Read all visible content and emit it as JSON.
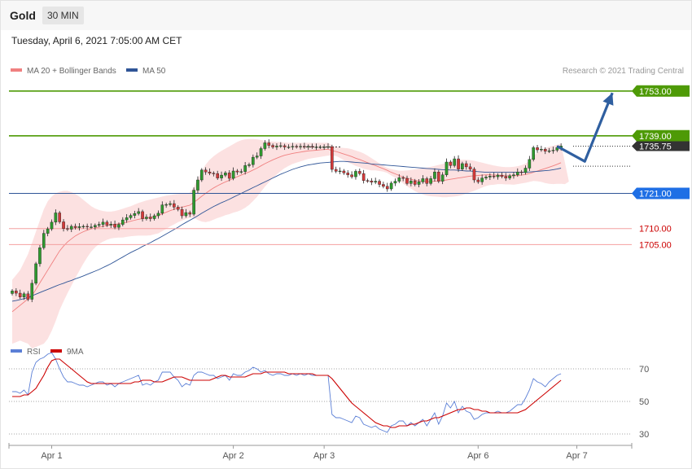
{
  "header": {
    "instrument": "Gold",
    "timeframe": "30 MIN",
    "datetime": "Tuesday, April 6, 2021 7:05:00 AM CET"
  },
  "legend": {
    "bollinger_label": "MA 20 + Bollinger Bands",
    "bollinger_color": "#f08080",
    "ma50_label": "MA 50",
    "ma50_color": "#2f5597",
    "copyright": "Research © 2021 Trading Central"
  },
  "rsi_legend": {
    "rsi_label": "RSI",
    "rsi_color": "#5b7fd6",
    "ma9_label": "9MA",
    "ma9_color": "#cc0000"
  },
  "levels": [
    {
      "value": 1753,
      "label": "1753.00",
      "kind": "resistance",
      "color": "#4e9a06"
    },
    {
      "value": 1739,
      "label": "1739.00",
      "kind": "resistance",
      "color": "#4e9a06"
    },
    {
      "value": 1735.75,
      "label": "1735.75",
      "kind": "last",
      "color": "#333333"
    },
    {
      "value": 1721,
      "label": "1721.00",
      "kind": "pivot",
      "color": "#1f6fe5"
    },
    {
      "value": 1710,
      "label": "1710.00",
      "kind": "support",
      "color": "#cc0000"
    },
    {
      "value": 1705,
      "label": "1705.00",
      "kind": "support",
      "color": "#cc0000"
    }
  ],
  "chart_data": {
    "type": "candlestick",
    "instrument": "Gold",
    "interval": "30 MIN",
    "x_ticks": [
      "Apr 1",
      "Apr 2",
      "Apr 3",
      "Apr 6",
      "Apr 7"
    ],
    "y_range": [
      1672,
      1756
    ],
    "closes": [
      1690.5,
      1689.8,
      1688.6,
      1689.6,
      1687.9,
      1692.9,
      1699,
      1704,
      1708.5,
      1709.9,
      1712,
      1714.9,
      1712.1,
      1710,
      1709.8,
      1710.7,
      1710.3,
      1710.6,
      1710.7,
      1710.5,
      1710.5,
      1711,
      1711.3,
      1712,
      1711.1,
      1711.4,
      1710.4,
      1711.3,
      1712.7,
      1713.4,
      1714.1,
      1714.7,
      1715.3,
      1713.1,
      1713.6,
      1713.1,
      1714,
      1714.8,
      1717.4,
      1717.5,
      1717.8,
      1716.7,
      1716,
      1714,
      1715,
      1714.5,
      1722,
      1725.2,
      1728.3,
      1727.7,
      1727.3,
      1727.2,
      1725.8,
      1726.7,
      1727.4,
      1725.7,
      1728,
      1727.7,
      1727.8,
      1729.7,
      1730,
      1732.3,
      1732.7,
      1735,
      1736.8,
      1736,
      1735.5,
      1735.8,
      1735.9,
      1735.5,
      1735.5,
      1735.7,
      1735.6,
      1735.7,
      1735.5,
      1735.7,
      1735.5,
      1735.5,
      1735.5,
      1735.5,
      1735.6,
      1728.5,
      1727.9,
      1728,
      1727.4,
      1726.8,
      1726.2,
      1727.9,
      1727.2,
      1725,
      1724.9,
      1724.5,
      1724.8,
      1723.8,
      1723.2,
      1722.4,
      1724.2,
      1724.8,
      1725.9,
      1725.7,
      1724.1,
      1724.9,
      1723.8,
      1724.6,
      1725.6,
      1724.1,
      1725.6,
      1727.7,
      1724.8,
      1726.8,
      1730.8,
      1729.7,
      1731.8,
      1728.6,
      1730.3,
      1729.3,
      1728.6,
      1725.2,
      1724.6,
      1725.8,
      1726.1,
      1726.4,
      1726.2,
      1726.7,
      1726.3,
      1725.8,
      1726.5,
      1726.8,
      1727.7,
      1727.5,
      1728.9,
      1731.6,
      1735.3,
      1734.6,
      1734.8,
      1734.2,
      1734.3,
      1734.5,
      1735.3,
      1735.8
    ],
    "ma20": [
      1684,
      1685,
      1686,
      1687,
      1688,
      1689,
      1691,
      1693,
      1695,
      1697,
      1699,
      1701,
      1703,
      1704.5,
      1705.8,
      1706.8,
      1707.7,
      1708.4,
      1709,
      1709.5,
      1709.9,
      1710.2,
      1710.5,
      1710.7,
      1710.9,
      1711.1,
      1711.3,
      1711.5,
      1711.7,
      1712,
      1712.3,
      1712.6,
      1712.9,
      1713.1,
      1713.3,
      1713.5,
      1713.8,
      1714.1,
      1714.6,
      1715.1,
      1715.6,
      1716,
      1716.4,
      1716.7,
      1717,
      1717.3,
      1718.2,
      1719.1,
      1720.1,
      1721,
      1721.9,
      1722.7,
      1723.4,
      1724,
      1724.6,
      1725.1,
      1725.7,
      1726.2,
      1726.7,
      1727.2,
      1727.7,
      1728.3,
      1728.9,
      1729.6,
      1730.3,
      1730.9,
      1731.5,
      1732,
      1732.5,
      1732.9,
      1733.2,
      1733.5,
      1733.7,
      1733.9,
      1734.1,
      1734.3,
      1734.4,
      1734.5,
      1734.6,
      1734.7,
      1734.8,
      1734.4,
      1734.1,
      1733.7,
      1733.3,
      1732.9,
      1732.5,
      1732,
      1731.6,
      1731.1,
      1730.6,
      1730.1,
      1729.7,
      1729.2,
      1728.7,
      1728.2,
      1727.6,
      1727.1,
      1726.6,
      1726.1,
      1725.7,
      1725.4,
      1725.1,
      1724.9,
      1724.8,
      1724.7,
      1724.7,
      1724.8,
      1724.9,
      1725,
      1725.2,
      1725.4,
      1725.6,
      1725.8,
      1726,
      1726.2,
      1726.4,
      1726.5,
      1726.6,
      1726.7,
      1726.8,
      1726.8,
      1726.7,
      1726.7,
      1726.6,
      1726.5,
      1726.5,
      1726.5,
      1726.6,
      1726.7,
      1726.9,
      1727.2,
      1727.6,
      1728,
      1728.4,
      1728.8,
      1729.2,
      1729.6,
      1730.1,
      1730.6
    ],
    "bb_upper": [
      1694,
      1695.5,
      1697,
      1699.5,
      1702,
      1705.5,
      1709,
      1712.5,
      1716,
      1718.5,
      1720,
      1721,
      1721.5,
      1721.8,
      1721.8,
      1721.4,
      1720.8,
      1720,
      1719,
      1718,
      1717,
      1716.3,
      1715.8,
      1715.5,
      1715.3,
      1715.3,
      1715.5,
      1715.8,
      1716.2,
      1716.6,
      1717,
      1717.5,
      1718,
      1718.4,
      1718.8,
      1719.1,
      1719.4,
      1719.7,
      1720,
      1720.3,
      1720.5,
      1720.7,
      1720.8,
      1720.9,
      1721,
      1721.2,
      1723,
      1725.5,
      1728,
      1730,
      1731.5,
      1732.6,
      1733.5,
      1734.3,
      1735,
      1735.7,
      1736.4,
      1737.1,
      1737.6,
      1737.9,
      1738,
      1738,
      1737.9,
      1737.7,
      1737.5,
      1737.3,
      1737.2,
      1737.1,
      1737,
      1736.9,
      1736.8,
      1736.8,
      1736.8,
      1736.8,
      1736.8,
      1736.8,
      1736.8,
      1736.8,
      1736.8,
      1736.8,
      1736.8,
      1736,
      1735.5,
      1735.3,
      1735.2,
      1735.1,
      1734.8,
      1734.4,
      1734,
      1733.5,
      1732.8,
      1732,
      1731.2,
      1730.4,
      1729.6,
      1729,
      1728.6,
      1728.3,
      1728.1,
      1728.1,
      1728.2,
      1728.3,
      1728.5,
      1728.7,
      1728.9,
      1729.1,
      1729.3,
      1729.6,
      1729.9,
      1730.2,
      1730.6,
      1730.9,
      1731.2,
      1731.4,
      1731.5,
      1731.5,
      1731.4,
      1731.2,
      1730.9,
      1730.6,
      1730.3,
      1730,
      1729.7,
      1729.5,
      1729.3,
      1729.2,
      1729.2,
      1729.3,
      1729.5,
      1729.8,
      1730.3,
      1731.2,
      1732.6,
      1733.8,
      1734.6,
      1735.2,
      1735.6,
      1735.9,
      1736.2,
      1736.5
    ],
    "bb_lower": [
      1674,
      1674.5,
      1675,
      1674.5,
      1674,
      1672.5,
      1673,
      1673.5,
      1674,
      1675.5,
      1678,
      1681,
      1684.5,
      1687.2,
      1689.8,
      1692.2,
      1694.6,
      1696.8,
      1699,
      1701,
      1702.8,
      1704.1,
      1705.2,
      1705.9,
      1706.5,
      1706.9,
      1707.1,
      1707.2,
      1707.2,
      1707.4,
      1707.6,
      1707.7,
      1707.8,
      1707.8,
      1707.8,
      1707.9,
      1708.2,
      1708.5,
      1709.2,
      1709.9,
      1710.7,
      1711.3,
      1712,
      1712.5,
      1713,
      1713.4,
      1713.4,
      1712.7,
      1712.2,
      1712,
      1712.3,
      1712.8,
      1713.3,
      1713.7,
      1714.2,
      1714.5,
      1715,
      1715.3,
      1715.8,
      1716.5,
      1717.4,
      1718.6,
      1719.9,
      1721.5,
      1723.1,
      1724.5,
      1725.8,
      1726.9,
      1728,
      1728.9,
      1729.6,
      1730.2,
      1730.6,
      1731,
      1731.4,
      1731.8,
      1732,
      1732.2,
      1732.4,
      1732.6,
      1732.8,
      1732.8,
      1732.7,
      1732.1,
      1731.4,
      1730.7,
      1730.2,
      1729.6,
      1729.2,
      1728.7,
      1728.4,
      1728.2,
      1728.2,
      1728,
      1727.8,
      1727.4,
      1726.6,
      1725.9,
      1725.1,
      1724.1,
      1723.2,
      1722.5,
      1721.7,
      1721.1,
      1720.7,
      1720.3,
      1720.1,
      1720,
      1719.9,
      1719.8,
      1719.8,
      1719.9,
      1720,
      1720.2,
      1720.5,
      1720.9,
      1721.4,
      1721.8,
      1722.3,
      1722.8,
      1723.3,
      1723.6,
      1723.7,
      1723.9,
      1723.9,
      1723.8,
      1723.8,
      1723.7,
      1723.9,
      1724.1,
      1724.3,
      1724.6,
      1724.9,
      1724.8,
      1724.6,
      1724.2,
      1724,
      1723.9,
      1724,
      1724,
      1723.9,
      1724.7
    ],
    "ma50": [
      1687.3,
      1687.5,
      1687.8,
      1688.1,
      1688.5,
      1689,
      1689.5,
      1690,
      1690.5,
      1691,
      1691.5,
      1692,
      1692.5,
      1692.9,
      1693.4,
      1693.8,
      1694.3,
      1694.7,
      1695.2,
      1695.7,
      1696.2,
      1696.7,
      1697.2,
      1697.8,
      1698.4,
      1699,
      1699.7,
      1700.4,
      1701.1,
      1701.8,
      1702.5,
      1703.1,
      1703.7,
      1704.4,
      1705,
      1705.6,
      1706.3,
      1706.9,
      1707.6,
      1708.3,
      1709,
      1709.7,
      1710.4,
      1711.2,
      1711.9,
      1712.6,
      1713.3,
      1714,
      1714.8,
      1715.5,
      1716.2,
      1716.9,
      1717.5,
      1718.1,
      1718.6,
      1719.2,
      1719.8,
      1720.4,
      1721,
      1721.6,
      1722.2,
      1722.8,
      1723.4,
      1724,
      1724.6,
      1725.2,
      1725.8,
      1726.4,
      1727,
      1727.5,
      1728,
      1728.5,
      1728.9,
      1729.3,
      1729.6,
      1729.9,
      1730.1,
      1730.3,
      1730.5,
      1730.6,
      1730.7,
      1730.8,
      1730.9,
      1731,
      1731,
      1730.9,
      1730.8,
      1730.7,
      1730.6,
      1730.5,
      1730.4,
      1730.2,
      1730.1,
      1730,
      1729.9,
      1729.8,
      1729.7,
      1729.6,
      1729.5,
      1729.4,
      1729.3,
      1729.2,
      1729.1,
      1729,
      1728.9,
      1728.8,
      1728.7,
      1728.6,
      1728.5,
      1728.4,
      1728.4,
      1728.3,
      1728.3,
      1728.2,
      1728.1,
      1728,
      1728,
      1727.9,
      1727.8,
      1727.7,
      1727.6,
      1727.6,
      1727.6,
      1727.6,
      1727.6,
      1727.6,
      1727.6,
      1727.6,
      1727.6,
      1727.6,
      1727.6,
      1727.7,
      1727.8,
      1727.9,
      1728,
      1728.1,
      1728.2,
      1728.4,
      1728.6,
      1728.9
    ],
    "forecast_path": [
      [
        138,
        1735.75
      ],
      [
        145,
        1731
      ],
      [
        152,
        1752.4
      ]
    ],
    "rsi": {
      "ticks": [
        30,
        50,
        70
      ],
      "y_range": [
        22,
        82
      ],
      "values": [
        56,
        56,
        55,
        57,
        54,
        68,
        74,
        76,
        77,
        79,
        80,
        76,
        70,
        65,
        62,
        62,
        61,
        60,
        60,
        59,
        60,
        61,
        62,
        62,
        60,
        61,
        59,
        61,
        62,
        63,
        64,
        65,
        66,
        60,
        61,
        60,
        62,
        63,
        68,
        68,
        68,
        65,
        63,
        59,
        61,
        60,
        66,
        68,
        68,
        67,
        66,
        66,
        64,
        65,
        66,
        63,
        67,
        66,
        66,
        68,
        69,
        71,
        70,
        68,
        69,
        67,
        66,
        67,
        67,
        66,
        66,
        67,
        66,
        67,
        66,
        67,
        66,
        66,
        66,
        66,
        66,
        42,
        40,
        40,
        39,
        38,
        37,
        41,
        40,
        36,
        35,
        34,
        35,
        33,
        32,
        31,
        35,
        36,
        38,
        38,
        35,
        37,
        35,
        37,
        39,
        35,
        39,
        43,
        36,
        41,
        49,
        46,
        50,
        43,
        47,
        44,
        43,
        39,
        40,
        42,
        43,
        43,
        43,
        44,
        43,
        43,
        44,
        46,
        48,
        48,
        52,
        57,
        64,
        62,
        61,
        59,
        62,
        64,
        66,
        67
      ],
      "ma9": [
        53,
        53,
        53,
        54,
        54,
        56,
        58,
        62,
        66,
        71,
        75,
        76,
        76,
        74,
        72,
        70,
        68,
        66,
        64,
        62,
        61,
        61,
        61,
        61,
        61,
        61,
        61,
        61,
        61,
        61,
        61,
        62,
        62,
        63,
        63,
        63,
        62,
        62,
        62,
        63,
        64,
        65,
        65,
        65,
        64,
        63,
        63,
        63,
        63,
        63,
        63,
        64,
        65,
        66,
        66,
        65,
        65,
        65,
        65,
        65,
        66,
        67,
        67,
        67,
        68,
        68,
        68,
        68,
        68,
        68,
        67,
        67,
        67,
        67,
        67,
        67,
        67,
        66,
        66,
        66,
        66,
        64,
        61,
        58,
        55,
        52,
        49,
        47,
        45,
        43,
        41,
        39,
        37,
        36,
        35,
        35,
        34,
        34,
        35,
        35,
        35,
        36,
        36,
        37,
        38,
        38,
        39,
        40,
        40,
        41,
        42,
        43,
        44,
        45,
        45,
        46,
        46,
        45,
        45,
        44,
        44,
        43,
        43,
        43,
        43,
        43,
        43,
        43,
        43,
        44,
        45,
        47,
        49,
        51,
        53,
        55,
        57,
        59,
        61,
        63
      ]
    }
  }
}
